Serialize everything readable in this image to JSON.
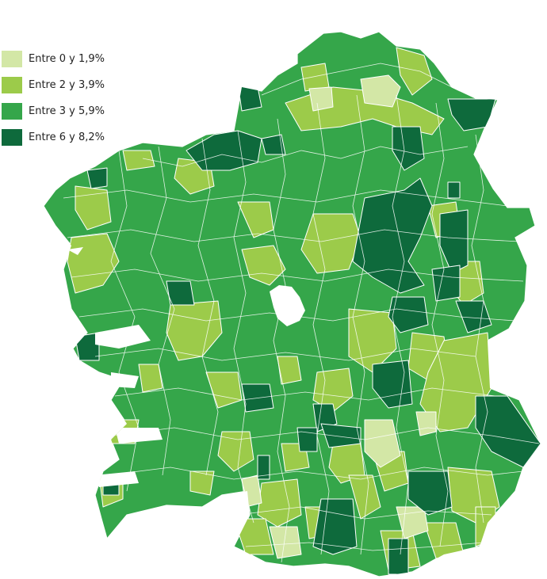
{
  "legend": {
    "items": [
      {
        "label": "Entre 0 y 1,9%",
        "color": "#d3e7a6"
      },
      {
        "label": "Entre 2 y 3,9%",
        "color": "#9ccb4a"
      },
      {
        "label": "Entre 3 y 5,9%",
        "color": "#35a64a"
      },
      {
        "label": "Entre 6 y 8,2%",
        "color": "#0e6a3c"
      }
    ]
  },
  "map": {
    "region_outline_color": "#ffffff",
    "no_data_color": "#ffffff"
  }
}
